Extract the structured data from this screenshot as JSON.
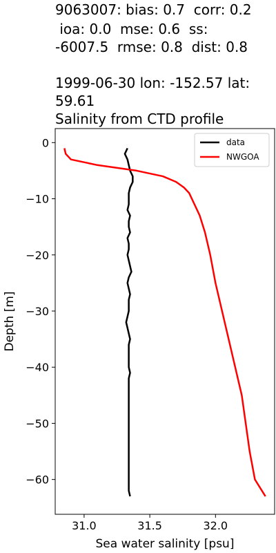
{
  "title": {
    "lines": [
      "9063007: bias: 0.7  corr: 0.2",
      " ioa: 0.0  mse: 0.6  ss:",
      "-6007.5  rmse: 0.8  dist: 0.8",
      "",
      "1999-06-30 lon: -152.57 lat:",
      "59.61",
      "Salinity from CTD profile"
    ]
  },
  "chart_data": {
    "type": "line",
    "title": "Salinity from CTD profile",
    "xlabel": "Sea water salinity [psu]",
    "ylabel": "Depth [m]",
    "xlim": [
      30.78,
      32.45
    ],
    "ylim": [
      -66.2,
      2.5
    ],
    "xticks": [
      31.0,
      31.5,
      32.0
    ],
    "xtick_labels": [
      "31.0",
      "31.5",
      "32.0"
    ],
    "yticks": [
      0,
      -10,
      -20,
      -30,
      -40,
      -50,
      -60
    ],
    "ytick_labels": [
      "0",
      "−10",
      "−20",
      "−30",
      "−40",
      "−50",
      "−60"
    ],
    "grid": false,
    "legend_position": "top-right",
    "series": [
      {
        "name": "data",
        "color": "#000000",
        "points": [
          [
            31.33,
            -1
          ],
          [
            31.31,
            -2
          ],
          [
            31.33,
            -3
          ],
          [
            31.34,
            -4
          ],
          [
            31.35,
            -5
          ],
          [
            31.37,
            -6
          ],
          [
            31.37,
            -7
          ],
          [
            31.35,
            -8
          ],
          [
            31.34,
            -9
          ],
          [
            31.34,
            -10
          ],
          [
            31.34,
            -11
          ],
          [
            31.33,
            -12
          ],
          [
            31.35,
            -13
          ],
          [
            31.34,
            -14
          ],
          [
            31.34,
            -15
          ],
          [
            31.35,
            -16
          ],
          [
            31.33,
            -17
          ],
          [
            31.34,
            -18
          ],
          [
            31.34,
            -19
          ],
          [
            31.33,
            -20
          ],
          [
            31.34,
            -21
          ],
          [
            31.35,
            -22
          ],
          [
            31.36,
            -23
          ],
          [
            31.34,
            -24
          ],
          [
            31.33,
            -25
          ],
          [
            31.34,
            -26
          ],
          [
            31.35,
            -27
          ],
          [
            31.34,
            -28
          ],
          [
            31.34,
            -29
          ],
          [
            31.34,
            -30
          ],
          [
            31.33,
            -31
          ],
          [
            31.32,
            -32
          ],
          [
            31.33,
            -33
          ],
          [
            31.34,
            -34
          ],
          [
            31.35,
            -35
          ],
          [
            31.34,
            -36
          ],
          [
            31.34,
            -37
          ],
          [
            31.34,
            -38
          ],
          [
            31.34,
            -39
          ],
          [
            31.34,
            -40
          ],
          [
            31.35,
            -41
          ],
          [
            31.34,
            -42
          ],
          [
            31.34,
            -43
          ],
          [
            31.34,
            -44
          ],
          [
            31.34,
            -45
          ],
          [
            31.34,
            -46
          ],
          [
            31.34,
            -47
          ],
          [
            31.34,
            -48
          ],
          [
            31.34,
            -49
          ],
          [
            31.34,
            -50
          ],
          [
            31.34,
            -51
          ],
          [
            31.34,
            -52
          ],
          [
            31.34,
            -53
          ],
          [
            31.34,
            -54
          ],
          [
            31.34,
            -55
          ],
          [
            31.34,
            -56
          ],
          [
            31.34,
            -57
          ],
          [
            31.34,
            -58
          ],
          [
            31.34,
            -59
          ],
          [
            31.34,
            -60
          ],
          [
            31.34,
            -61
          ],
          [
            31.34,
            -62
          ],
          [
            31.35,
            -63
          ]
        ]
      },
      {
        "name": "NWGOA",
        "color": "#ff0000",
        "points": [
          [
            30.85,
            -1
          ],
          [
            30.86,
            -2
          ],
          [
            30.9,
            -3
          ],
          [
            31.1,
            -4
          ],
          [
            31.4,
            -5
          ],
          [
            31.6,
            -6
          ],
          [
            31.7,
            -7
          ],
          [
            31.76,
            -8
          ],
          [
            31.8,
            -9
          ],
          [
            31.84,
            -11
          ],
          [
            31.88,
            -13
          ],
          [
            31.92,
            -16
          ],
          [
            31.96,
            -20
          ],
          [
            32.0,
            -25
          ],
          [
            32.05,
            -30
          ],
          [
            32.1,
            -35
          ],
          [
            32.15,
            -40
          ],
          [
            32.2,
            -45
          ],
          [
            32.23,
            -50
          ],
          [
            32.26,
            -55
          ],
          [
            32.3,
            -60
          ],
          [
            32.38,
            -63
          ]
        ]
      }
    ]
  }
}
